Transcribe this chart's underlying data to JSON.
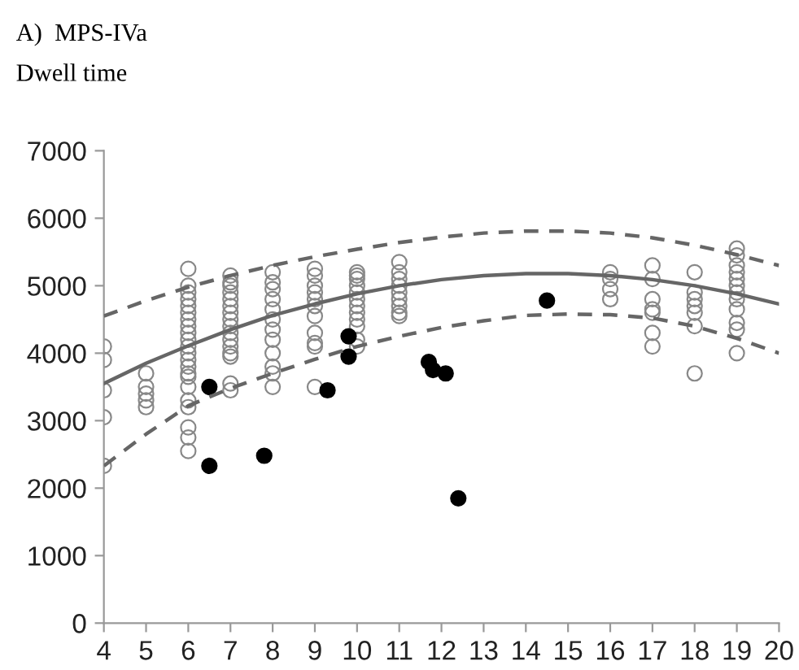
{
  "chart_data": {
    "type": "scatter",
    "title": "A)  MPS-IVa",
    "subtitle": "Dwell time",
    "xlim": [
      4,
      20
    ],
    "xticks": [
      4,
      5,
      6,
      7,
      8,
      9,
      10,
      11,
      12,
      13,
      14,
      15,
      16,
      17,
      18,
      19,
      20
    ],
    "ylim": [
      0,
      7000
    ],
    "yticks": [
      0,
      1000,
      2000,
      3000,
      4000,
      5000,
      6000,
      7000
    ],
    "grid": false,
    "legend": false,
    "series": [
      {
        "color": "#888888",
        "marker": "circle",
        "x": [
          4,
          4,
          4,
          4,
          4,
          5,
          5,
          5,
          5,
          5,
          6,
          6,
          6,
          6,
          6,
          6,
          6,
          6,
          6,
          6,
          6,
          6,
          6,
          6,
          6,
          6,
          6,
          6,
          6,
          6,
          6,
          6,
          7,
          7,
          7,
          7,
          7,
          7,
          7,
          7,
          7,
          7,
          7,
          7,
          7,
          7,
          7,
          7,
          8,
          8,
          8,
          8,
          8,
          8,
          8,
          8,
          8,
          8,
          8,
          8,
          9,
          9,
          9,
          9,
          9,
          9,
          9,
          9,
          9,
          9,
          9,
          10,
          10,
          10,
          10,
          10,
          10,
          10,
          10,
          10,
          10,
          10,
          10,
          11,
          11,
          11,
          11,
          11,
          11,
          11,
          11,
          11,
          16,
          16,
          16,
          16,
          17,
          17,
          17,
          17,
          17,
          17,
          17,
          18,
          18,
          18,
          18,
          18,
          18,
          18,
          19,
          19,
          19,
          19,
          19,
          19,
          19,
          19,
          19,
          19,
          19,
          19
        ],
        "values": [
          4100,
          3900,
          3450,
          3050,
          2330,
          3700,
          3500,
          3400,
          3300,
          3200,
          5250,
          5000,
          4900,
          4800,
          4700,
          4600,
          4500,
          4400,
          4300,
          4200,
          4100,
          4000,
          3900,
          3800,
          3700,
          3650,
          3500,
          3300,
          3200,
          2900,
          2750,
          2550,
          5150,
          5050,
          5000,
          4900,
          4800,
          4700,
          4600,
          4500,
          4400,
          4300,
          4200,
          4100,
          4000,
          3950,
          3550,
          3450,
          5200,
          5050,
          4950,
          4800,
          4650,
          4500,
          4350,
          4200,
          4000,
          3800,
          3700,
          3500,
          5250,
          5150,
          5000,
          4900,
          4800,
          4700,
          4550,
          4300,
          4150,
          4100,
          3500,
          5200,
          5150,
          5100,
          5000,
          4900,
          4800,
          4700,
          4600,
          4500,
          4400,
          4200,
          4100,
          5350,
          5200,
          5100,
          5000,
          4900,
          4800,
          4700,
          4600,
          4550,
          5200,
          5100,
          4950,
          4800,
          5300,
          5100,
          4800,
          4650,
          4600,
          4300,
          4100,
          5200,
          4900,
          4800,
          4700,
          4600,
          4400,
          3700,
          5550,
          5450,
          5300,
          5200,
          5100,
          5000,
          4900,
          4800,
          4650,
          4450,
          4350,
          4000
        ]
      },
      {
        "type": "scatter",
        "color": "#000000",
        "marker": "circle",
        "x": [
          6.5,
          6.5,
          7.8,
          9.3,
          9.8,
          9.8,
          11.7,
          11.8,
          12.1,
          12.4,
          14.5
        ],
        "values": [
          3500,
          2330,
          2480,
          3450,
          4250,
          3950,
          3870,
          3750,
          3700,
          1850,
          4780
        ]
      },
      {
        "type": "line",
        "color": "#666666",
        "line_style": "solid",
        "x": [
          4,
          5,
          6,
          7,
          8,
          9,
          10,
          11,
          12,
          13,
          14,
          15,
          16,
          17,
          18,
          19,
          20
        ],
        "values": [
          3550,
          3850,
          4110,
          4350,
          4560,
          4730,
          4880,
          5000,
          5090,
          5150,
          5180,
          5180,
          5150,
          5090,
          5000,
          4880,
          4730
        ]
      },
      {
        "type": "line",
        "color": "#666666",
        "line_style": "dashed",
        "x": [
          4,
          5,
          6,
          7,
          8,
          9,
          10,
          11,
          12,
          13,
          14,
          15,
          16,
          17,
          18,
          19,
          20
        ],
        "values": [
          4550,
          4780,
          4980,
          5150,
          5300,
          5430,
          5540,
          5640,
          5720,
          5780,
          5810,
          5810,
          5780,
          5710,
          5600,
          5460,
          5300
        ]
      },
      {
        "type": "line",
        "color": "#666666",
        "line_style": "dashed",
        "x": [
          4,
          5,
          6,
          7,
          8,
          9,
          10,
          11,
          12,
          13,
          14,
          15,
          16,
          17,
          18,
          19,
          20
        ],
        "values": [
          2330,
          2800,
          3220,
          3480,
          3700,
          3910,
          4100,
          4250,
          4380,
          4480,
          4560,
          4580,
          4570,
          4520,
          4400,
          4220,
          4000
        ]
      }
    ]
  }
}
